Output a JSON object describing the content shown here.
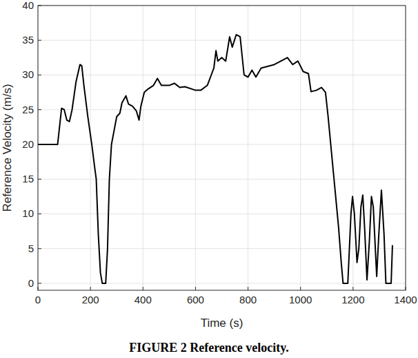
{
  "chart_data": {
    "type": "line",
    "title": "FIGURE 2 Reference velocity.",
    "x_label": "Time (s)",
    "y_label": "Reference Velocity (m/s)",
    "x": [
      0,
      75,
      90,
      100,
      110,
      120,
      130,
      145,
      160,
      167,
      175,
      190,
      205,
      215,
      222,
      230,
      238,
      245,
      258,
      265,
      272,
      280,
      290,
      300,
      312,
      320,
      335,
      345,
      360,
      375,
      385,
      392,
      405,
      420,
      440,
      455,
      470,
      500,
      520,
      540,
      560,
      600,
      620,
      645,
      660,
      670,
      678,
      685,
      700,
      715,
      730,
      740,
      755,
      770,
      785,
      800,
      815,
      830,
      850,
      900,
      950,
      970,
      990,
      1010,
      1030,
      1040,
      1060,
      1080,
      1095,
      1105,
      1120,
      1135,
      1145,
      1155,
      1162,
      1180,
      1192,
      1198,
      1205,
      1215,
      1222,
      1230,
      1237,
      1244,
      1253,
      1262,
      1270,
      1277,
      1290,
      1298,
      1308,
      1318,
      1325,
      1345,
      1350
    ],
    "values": [
      20,
      20,
      25.2,
      25,
      23.5,
      23.3,
      25,
      29,
      31.5,
      31.3,
      28.5,
      24,
      20,
      17,
      15,
      7,
      1.5,
      0,
      0,
      5,
      15,
      20,
      22,
      24,
      24.5,
      26,
      27,
      25.8,
      25.5,
      24.8,
      23.5,
      25.5,
      27.5,
      28,
      28.5,
      29.5,
      28.5,
      28.5,
      28.8,
      28.2,
      28.3,
      27.8,
      27.8,
      28.5,
      30,
      31,
      33.5,
      32,
      32.5,
      32,
      35.5,
      34,
      35.8,
      35.5,
      30,
      29.7,
      30.7,
      29.7,
      31,
      31.5,
      32.5,
      31.5,
      32,
      30.5,
      30.2,
      27.6,
      27.8,
      28.2,
      27.5,
      24,
      18,
      12,
      8,
      3,
      0,
      0,
      10,
      12.5,
      10,
      3,
      5,
      11,
      12.7,
      8,
      0.5,
      6,
      12.5,
      11,
      1,
      7,
      13.4,
      7,
      0,
      0,
      5.5
    ],
    "color": "#000000",
    "xlim": [
      0,
      1400
    ],
    "xticks": [
      0,
      200,
      400,
      600,
      800,
      1000,
      1200,
      1400
    ],
    "ylim": [
      -1,
      40
    ],
    "yticks": [
      0,
      5,
      10,
      15,
      20,
      25,
      30,
      35,
      40
    ],
    "grid": true
  }
}
